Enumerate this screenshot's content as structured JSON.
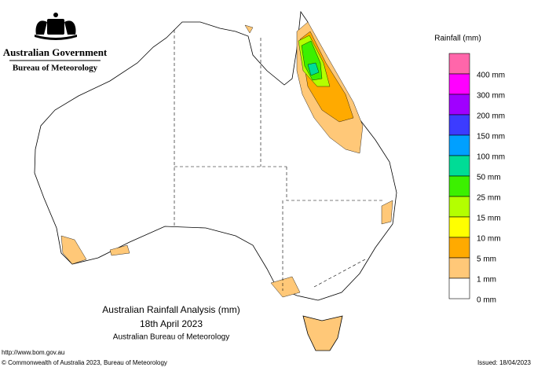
{
  "header": {
    "organisation": "Australian Government",
    "agency": "Bureau of Meteorology"
  },
  "legend": {
    "title": "Rainfall (mm)",
    "colors": [
      "#ff66aa",
      "#ff00ff",
      "#a000ff",
      "#3c3cff",
      "#00a0ff",
      "#00dc96",
      "#3cf000",
      "#b4ff00",
      "#ffff00",
      "#ffaa00",
      "#ffc878",
      "#ffffff"
    ],
    "labels": [
      "400 mm",
      "300 mm",
      "200 mm",
      "150 mm",
      "100 mm",
      "50 mm",
      "25 mm",
      "15 mm",
      "10 mm",
      "5 mm",
      "1 mm",
      "0 mm"
    ]
  },
  "caption": {
    "title": "Australian Rainfall Analysis (mm)",
    "date": "18th April 2023",
    "source": "Australian Bureau of Meteorology"
  },
  "footer": {
    "url": "http://www.bom.gov.au",
    "copyright": "© Commonwealth of Australia 2023, Bureau of Meteorology",
    "issued": "Issued: 18/04/2023"
  }
}
